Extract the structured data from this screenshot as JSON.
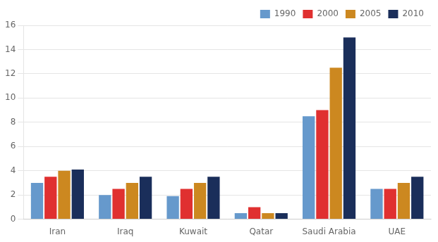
{
  "chart_data": {
    "type": "bar",
    "categories": [
      "Iran",
      "Iraq",
      "Kuwait",
      "Qatar",
      "Saudi Arabia",
      "UAE"
    ],
    "series": [
      {
        "name": "1990",
        "color": "#6699cc",
        "values": [
          3.0,
          2.0,
          1.9,
          0.5,
          8.5,
          2.5
        ]
      },
      {
        "name": "2000",
        "color": "#e03030",
        "values": [
          3.5,
          2.5,
          2.5,
          1.0,
          9.0,
          2.5
        ]
      },
      {
        "name": "2005",
        "color": "#cc8820",
        "values": [
          4.0,
          3.0,
          3.0,
          0.5,
          12.5,
          3.0
        ]
      },
      {
        "name": "2010",
        "color": "#1a2e5a",
        "values": [
          4.1,
          3.5,
          3.5,
          0.5,
          15.0,
          3.5
        ]
      }
    ],
    "ylim": [
      0,
      16
    ],
    "yticks": [
      0,
      2,
      4,
      6,
      8,
      10,
      12,
      14,
      16
    ],
    "grid": true,
    "legend": "upper right"
  }
}
